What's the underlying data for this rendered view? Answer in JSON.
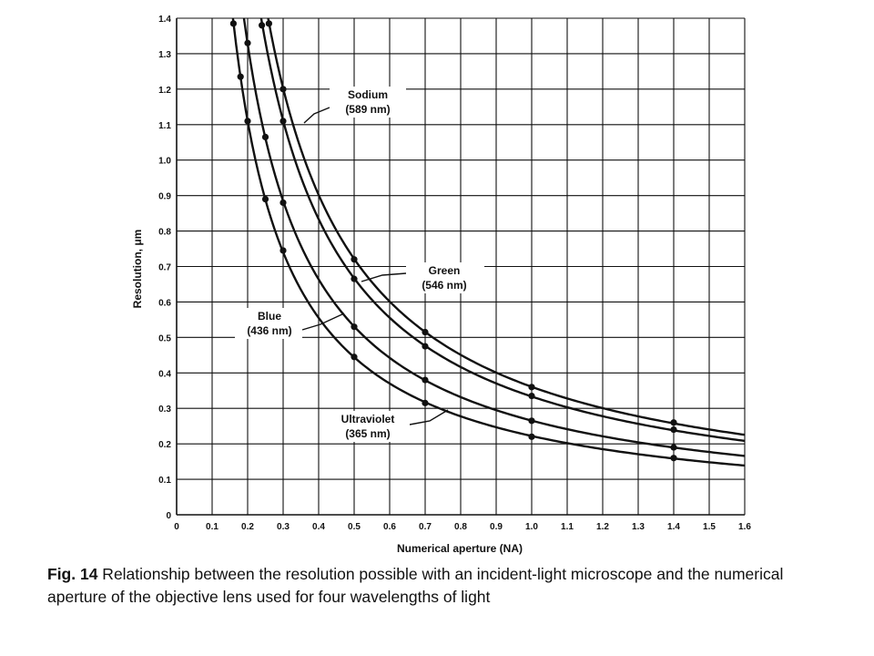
{
  "chart_data": {
    "type": "line",
    "xlabel": "Numerical aperture (NA)",
    "ylabel": "Resolution, μm",
    "xlim": [
      0,
      1.6
    ],
    "ylim": [
      0,
      1.4
    ],
    "x_ticks": [
      "0",
      "0.1",
      "0.2",
      "0.3",
      "0.4",
      "0.5",
      "0.6",
      "0.7",
      "0.8",
      "0.9",
      "1.0",
      "1.1",
      "1.2",
      "1.3",
      "1.4",
      "1.5",
      "1.6"
    ],
    "y_ticks": [
      "0",
      "0.1",
      "0.2",
      "0.3",
      "0.4",
      "0.5",
      "0.6",
      "0.7",
      "0.8",
      "0.9",
      "1.0",
      "1.1",
      "1.2",
      "1.3",
      "1.4"
    ],
    "grid": true,
    "series": [
      {
        "name": "Sodium (589 nm)",
        "label_line1": "Sodium",
        "label_line2": "(589 nm)",
        "x": [
          0.26,
          0.3,
          0.5,
          0.7,
          1.0,
          1.4
        ],
        "y": [
          1.385,
          1.2,
          0.72,
          0.515,
          0.36,
          0.26
        ]
      },
      {
        "name": "Green (546 nm)",
        "label_line1": "Green",
        "label_line2": "(546 nm)",
        "x": [
          0.24,
          0.3,
          0.5,
          0.7,
          1.0,
          1.4
        ],
        "y": [
          1.38,
          1.11,
          0.665,
          0.475,
          0.335,
          0.24
        ]
      },
      {
        "name": "Blue (436 nm)",
        "label_line1": "Blue",
        "label_line2": "(436 nm)",
        "x": [
          0.2,
          0.25,
          0.3,
          0.5,
          0.7,
          1.0,
          1.4
        ],
        "y": [
          1.33,
          1.065,
          0.88,
          0.53,
          0.38,
          0.265,
          0.19
        ]
      },
      {
        "name": "Ultraviolet (365 nm)",
        "label_line1": "Ultraviolet",
        "label_line2": "(365 nm)",
        "x": [
          0.16,
          0.18,
          0.2,
          0.25,
          0.3,
          0.5,
          0.7,
          1.0,
          1.4
        ],
        "y": [
          1.385,
          1.235,
          1.11,
          0.89,
          0.745,
          0.445,
          0.315,
          0.22,
          0.16
        ]
      }
    ]
  },
  "caption": {
    "fig_ref": "Fig. 14",
    "text": " Relationship between the resolution possible with an incident-light microscope and the numerical aperture of the objective lens used for four wavelengths of light"
  }
}
